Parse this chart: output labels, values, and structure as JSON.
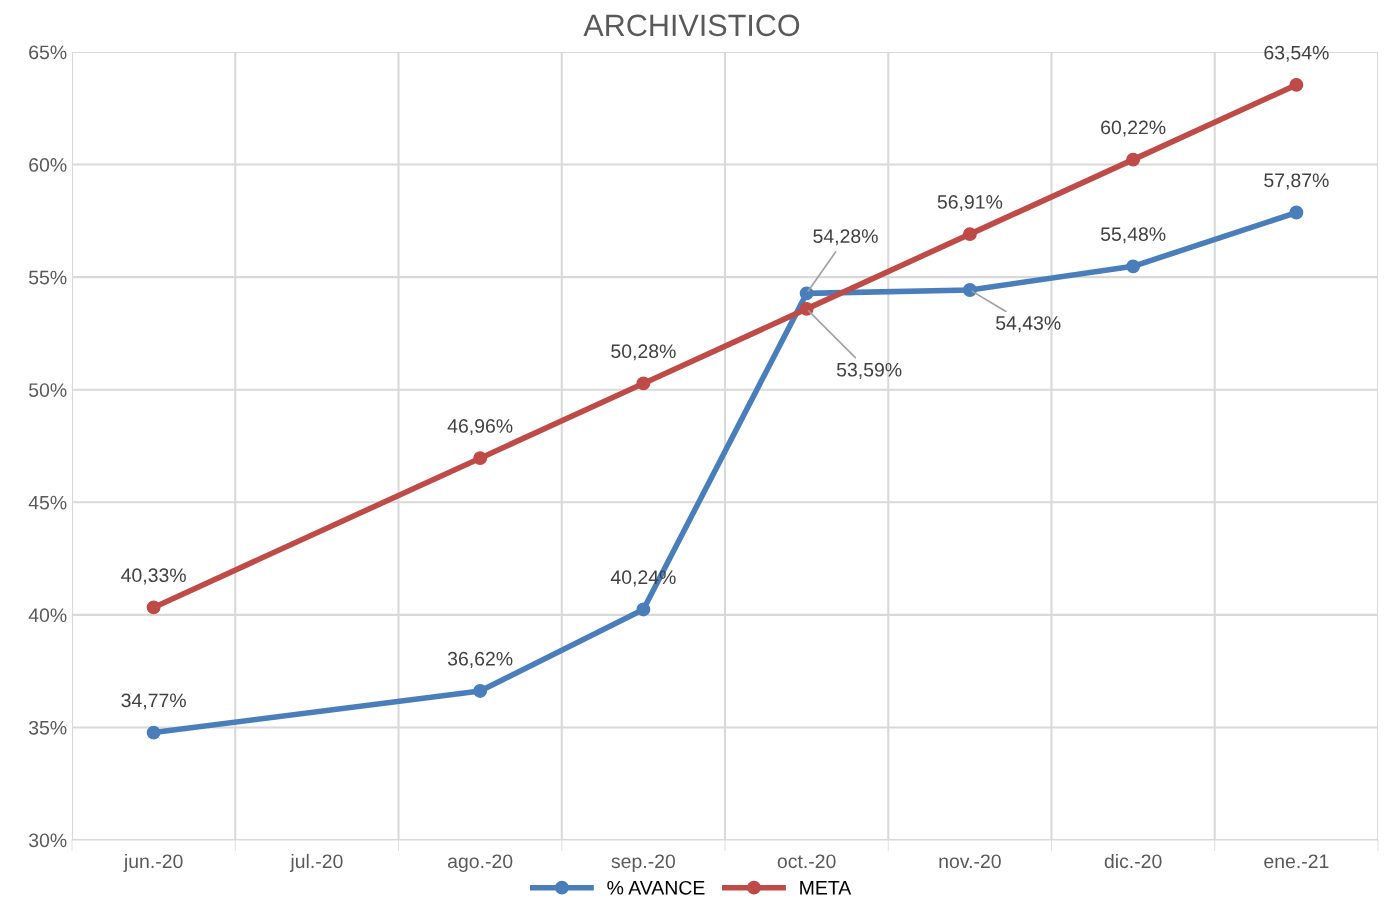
{
  "chart_data": {
    "type": "line",
    "title": "ARCHIVISTICO",
    "categories": [
      "jun.-20",
      "jul.-20",
      "ago.-20",
      "sep.-20",
      "oct.-20",
      "nov.-20",
      "dic.-20",
      "ene.-21"
    ],
    "series": [
      {
        "name": "% AVANCE",
        "color": "#4a7ebb",
        "values": [
          34.77,
          null,
          36.62,
          40.24,
          54.28,
          54.43,
          55.48,
          57.87
        ],
        "value_labels": [
          "34,77%",
          null,
          "36,62%",
          "40,24%",
          "54,28%",
          "54,43%",
          "55,48%",
          "57,87%"
        ]
      },
      {
        "name": "META",
        "color": "#be4b48",
        "values": [
          40.33,
          null,
          46.96,
          50.28,
          53.59,
          56.91,
          60.22,
          63.54
        ],
        "value_labels": [
          "40,33%",
          null,
          "46,96%",
          "50,28%",
          "53,59%",
          "56,91%",
          "60,22%",
          "63,54%"
        ]
      }
    ],
    "ylim": [
      30,
      65
    ],
    "yticks": [
      {
        "value": 30,
        "label": "30%"
      },
      {
        "value": 35,
        "label": "35%"
      },
      {
        "value": 40,
        "label": "40%"
      },
      {
        "value": 45,
        "label": "45%"
      },
      {
        "value": 50,
        "label": "50%"
      },
      {
        "value": 55,
        "label": "55%"
      },
      {
        "value": 60,
        "label": "60%"
      },
      {
        "value": 65,
        "label": "65%"
      }
    ],
    "grid": true,
    "legend": "bottom",
    "marker": "circle",
    "line_style": "solid"
  }
}
